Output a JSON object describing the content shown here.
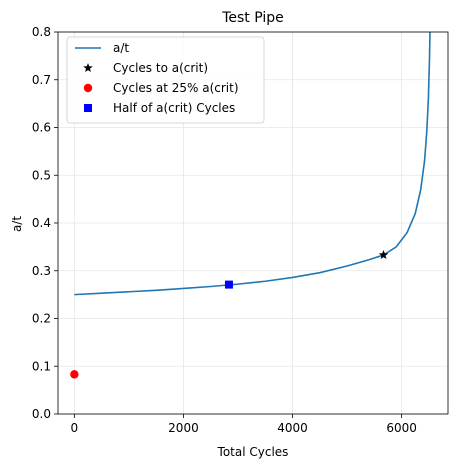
{
  "chart_data": {
    "type": "line",
    "title": "Test Pipe",
    "xlabel": "Total Cycles",
    "ylabel": "a/t",
    "xlim": [
      -300,
      6850
    ],
    "ylim": [
      0,
      0.8
    ],
    "xticks": [
      0,
      2000,
      4000,
      6000
    ],
    "yticks": [
      0.0,
      0.1,
      0.2,
      0.3,
      0.4,
      0.5,
      0.6,
      0.7,
      0.8
    ],
    "xtick_labels": [
      "0",
      "2000",
      "4000",
      "6000"
    ],
    "ytick_labels": [
      "0.0",
      "0.1",
      "0.2",
      "0.3",
      "0.4",
      "0.5",
      "0.6",
      "0.7",
      "0.8"
    ],
    "grid": true,
    "legend_position": "top-left",
    "series": [
      {
        "name": "a/t",
        "kind": "line",
        "color": "#1f77b4",
        "x": [
          0,
          500,
          1000,
          1500,
          2000,
          2500,
          3000,
          3500,
          4000,
          4500,
          5000,
          5400,
          5668,
          5900,
          6100,
          6250,
          6350,
          6420,
          6460,
          6490,
          6510,
          6520
        ],
        "y": [
          0.25,
          0.253,
          0.256,
          0.259,
          0.263,
          0.267,
          0.272,
          0.278,
          0.286,
          0.296,
          0.31,
          0.323,
          0.333,
          0.35,
          0.38,
          0.42,
          0.47,
          0.53,
          0.59,
          0.66,
          0.74,
          0.8
        ]
      },
      {
        "name": "Cycles to a(crit)",
        "kind": "marker",
        "marker": "star",
        "color": "#000000",
        "x": [
          5668
        ],
        "y": [
          0.333
        ]
      },
      {
        "name": "Cycles at 25% a(crit)",
        "kind": "marker",
        "marker": "circle",
        "color": "#ff0000",
        "x": [
          0
        ],
        "y": [
          0.083
        ]
      },
      {
        "name": "Half of a(crit) Cycles",
        "kind": "marker",
        "marker": "square",
        "color": "#0000ff",
        "x": [
          2834
        ],
        "y": [
          0.271
        ]
      }
    ]
  }
}
